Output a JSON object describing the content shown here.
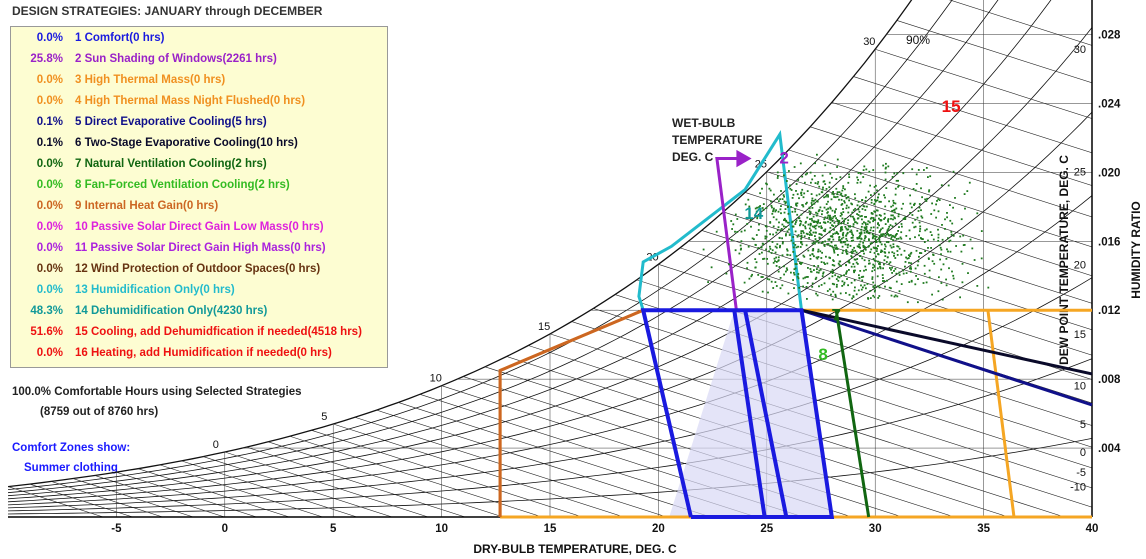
{
  "title": "DESIGN STRATEGIES:  JANUARY through DECEMBER",
  "legend": [
    {
      "pct": "0.0%",
      "label": "1  Comfort(0 hrs)",
      "color": "#1a1adf"
    },
    {
      "pct": "25.8%",
      "label": "2  Sun Shading of Windows(2261 hrs)",
      "color": "#9a22c8"
    },
    {
      "pct": "0.0%",
      "label": "3  High Thermal Mass(0 hrs)",
      "color": "#f09020"
    },
    {
      "pct": "0.0%",
      "label": "4  High Thermal Mass Night Flushed(0 hrs)",
      "color": "#f09020"
    },
    {
      "pct": "0.1%",
      "label": "5  Direct Evaporative Cooling(5 hrs)",
      "color": "#10108a"
    },
    {
      "pct": "0.1%",
      "label": "6  Two-Stage Evaporative Cooling(10 hrs)",
      "color": "#0a0a2a"
    },
    {
      "pct": "0.0%",
      "label": "7  Natural Ventilation Cooling(2 hrs)",
      "color": "#116611"
    },
    {
      "pct": "0.0%",
      "label": "8  Fan-Forced Ventilation Cooling(2 hrs)",
      "color": "#33bb22"
    },
    {
      "pct": "0.0%",
      "label": "9  Internal Heat Gain(0 hrs)",
      "color": "#cc6622"
    },
    {
      "pct": "0.0%",
      "label": "10  Passive Solar Direct Gain Low Mass(0 hrs)",
      "color": "#dd22dd"
    },
    {
      "pct": "0.0%",
      "label": "11  Passive Solar Direct Gain High Mass(0 hrs)",
      "color": "#aa22dd"
    },
    {
      "pct": "0.0%",
      "label": "12  Wind Protection of Outdoor Spaces(0 hrs)",
      "color": "#663311"
    },
    {
      "pct": "0.0%",
      "label": "13  Humidification Only(0 hrs)",
      "color": "#22bbcc"
    },
    {
      "pct": "48.3%",
      "label": "14  Dehumidification Only(4230 hrs)",
      "color": "#119999"
    },
    {
      "pct": "51.6%",
      "label": "15  Cooling, add Dehumidfication if needed(4518 hrs)",
      "color": "#ee1111"
    },
    {
      "pct": "0.0%",
      "label": "16  Heating, add Humidification if needed(0 hrs)",
      "color": "#ee1111"
    }
  ],
  "summary": {
    "line1": "100.0%  Comfortable Hours using Selected Strategies",
    "line2": "(8759 out of 8760 hrs)"
  },
  "zones": {
    "line1": "Comfort Zones show:",
    "line2": "Summer clothing"
  },
  "chart_data": {
    "type": "psychrometric",
    "xlabel": "DRY-BULB TEMPERATURE, DEG. C",
    "ylabel_right_inner": "DEW POINT TEMPERATURE, DEG. C",
    "ylabel_right_outer": "HUMIDITY RATIO",
    "xlim": [
      -10,
      40
    ],
    "ylim": [
      0,
      0.03
    ],
    "x_ticks": [
      "-5",
      "0",
      "5",
      "10",
      "15",
      "20",
      "25",
      "30",
      "35",
      "40"
    ],
    "x_tick_values": [
      -5,
      0,
      5,
      10,
      15,
      20,
      25,
      30,
      35,
      40
    ],
    "humidity_ratio_ticks": [
      ".004",
      ".008",
      ".012",
      ".016",
      ".020",
      ".024",
      ".028"
    ],
    "humidity_ratio_values": [
      0.004,
      0.008,
      0.012,
      0.016,
      0.02,
      0.024,
      0.028
    ],
    "dew_point_ticks": [
      "-10",
      "-5",
      "0",
      "5",
      "10",
      "15",
      "20",
      "25",
      "30"
    ],
    "dew_point_values": [
      -10,
      -5,
      0,
      5,
      10,
      15,
      20,
      25,
      30
    ],
    "rh_label": "90%",
    "wet_bulb_label": [
      "WET-BULB",
      "TEMPERATURE",
      "DEG. C"
    ],
    "wet_bulb_values": [
      "0",
      "5",
      "10",
      "15",
      "20",
      "25",
      "30"
    ],
    "zone_labels": [
      {
        "text": "2",
        "color": "#9a22c8",
        "tdb": 25.8,
        "w": 0.0205
      },
      {
        "text": "14",
        "color": "#119999",
        "tdb": 24.4,
        "w": 0.0173
      },
      {
        "text": "15",
        "color": "#ee1111",
        "tdb": 33.5,
        "w": 0.0235
      },
      {
        "text": "7",
        "color": "#116611",
        "tdb": 28.2,
        "w": 0.0114
      },
      {
        "text": "8",
        "color": "#33bb22",
        "tdb": 27.6,
        "w": 0.0091
      }
    ],
    "scatter_color": "#1f7a1f",
    "scatter_extent": {
      "tdb": [
        21,
        40
      ],
      "w": [
        0.012,
        0.0215
      ]
    },
    "colors": {
      "comfort": "#1a1adf",
      "orange": "#f5a623",
      "heat": "#cc6622",
      "cyan": "#22bbcc",
      "purple": "#9a22c8",
      "evap": "#10108a",
      "evap2": "#0a0a2a",
      "vent": "#116611",
      "fan": "#33bb22"
    }
  }
}
